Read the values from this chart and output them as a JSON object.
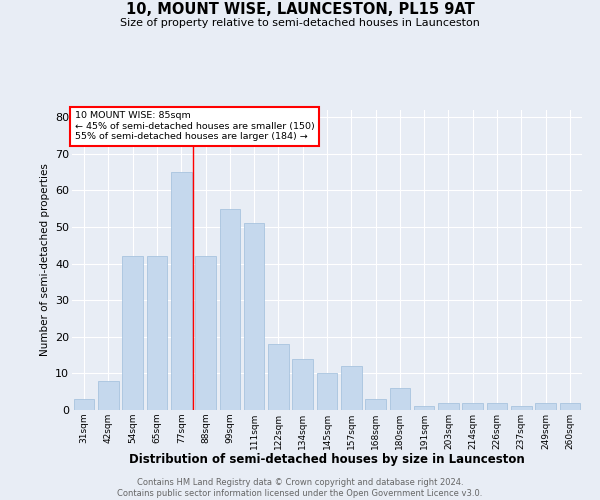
{
  "title": "10, MOUNT WISE, LAUNCESTON, PL15 9AT",
  "subtitle": "Size of property relative to semi-detached houses in Launceston",
  "xlabel": "Distribution of semi-detached houses by size in Launceston",
  "ylabel": "Number of semi-detached properties",
  "categories": [
    "31sqm",
    "42sqm",
    "54sqm",
    "65sqm",
    "77sqm",
    "88sqm",
    "99sqm",
    "111sqm",
    "122sqm",
    "134sqm",
    "145sqm",
    "157sqm",
    "168sqm",
    "180sqm",
    "191sqm",
    "203sqm",
    "214sqm",
    "226sqm",
    "237sqm",
    "249sqm",
    "260sqm"
  ],
  "values": [
    3,
    8,
    42,
    42,
    65,
    42,
    55,
    51,
    18,
    14,
    10,
    12,
    3,
    6,
    1,
    2,
    2,
    2,
    1,
    2,
    2
  ],
  "bar_color": "#c5d8ed",
  "bar_edge_color": "#a8c4df",
  "annotation_line1": "10 MOUNT WISE: 85sqm",
  "annotation_line2": "← 45% of semi-detached houses are smaller (150)",
  "annotation_line3": "55% of semi-detached houses are larger (184) →",
  "vline_x": 4.5,
  "ylim": [
    0,
    82
  ],
  "yticks": [
    0,
    10,
    20,
    30,
    40,
    50,
    60,
    70,
    80
  ],
  "background_color": "#e8edf5",
  "grid_color": "#ffffff",
  "footer_line1": "Contains HM Land Registry data © Crown copyright and database right 2024.",
  "footer_line2": "Contains public sector information licensed under the Open Government Licence v3.0."
}
